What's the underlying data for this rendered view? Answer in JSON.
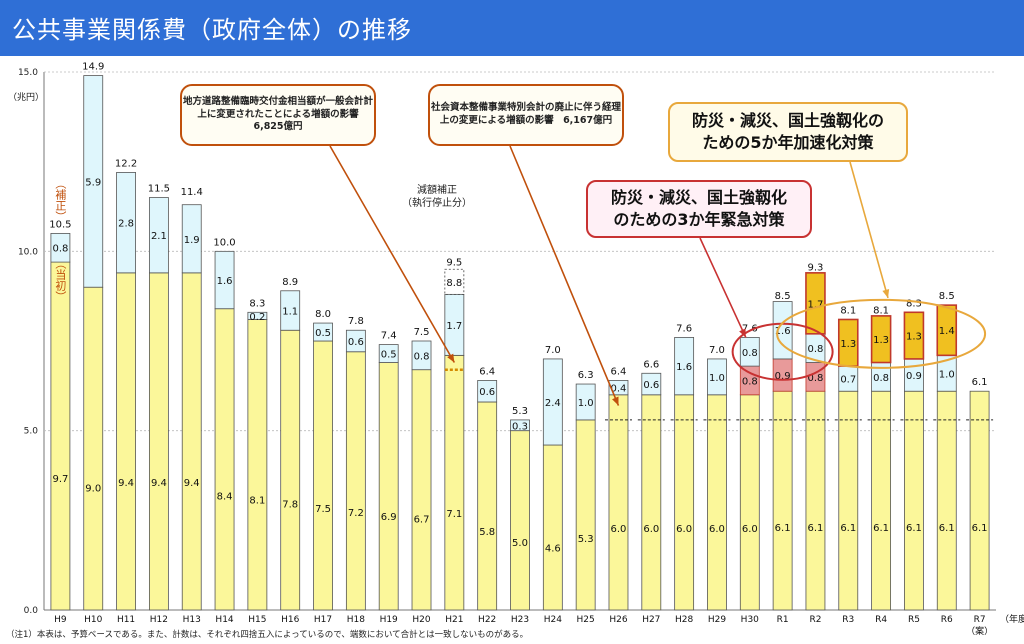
{
  "title": "公共事業関係費（政府全体）の推移",
  "unit": "（兆円）",
  "year_unit": "（年度）",
  "note": "（注1）本表は、予算ベースである。また、計数は、それぞれ四捨五入によっているので、端数において合計とは一致しないものがある。",
  "annotations": {
    "box1": "地方道路整備臨時交付金相当額が一般会計計上に変更されたことによる増額の影響　6,825億円",
    "box2": "社会資本整備事業特別会計の廃止に伴う経理上の変更による増額の影響　6,167億円",
    "box3_line1": "防災・減災、国土強靱化の",
    "box3_line2": "ための5か年加速化対策",
    "box4_line1": "防災・減災、国土強靱化",
    "box4_line2": "のための3か年緊急対策",
    "sanban_line1": "減額補正",
    "sanban_line2": "（執行停止分）",
    "hosei_label": "（補正）",
    "toushoku_label": "（当初）",
    "r7_note": "（案）"
  },
  "colors": {
    "initial": "#fbf79a",
    "supplementary": "#dff6fc",
    "emergency": "#e89a9a",
    "acceleration": "#f0c020",
    "header": "#2f6fd6"
  },
  "chart_data": {
    "type": "bar",
    "stacked": true,
    "ylim": [
      0,
      15
    ],
    "yticks": [
      "0.0",
      "5.0",
      "10.0",
      "15.0"
    ],
    "ytick_values": [
      0,
      5,
      10,
      15
    ],
    "categories": [
      "H9",
      "H10",
      "H11",
      "H12",
      "H13",
      "H14",
      "H15",
      "H16",
      "H17",
      "H18",
      "H19",
      "H20",
      "H21",
      "H22",
      "H23",
      "H24",
      "H25",
      "H26",
      "H27",
      "H28",
      "H29",
      "H30",
      "R1",
      "R2",
      "R3",
      "R4",
      "R5",
      "R6",
      "R7"
    ],
    "totals": [
      "10.5",
      "14.9",
      "12.2",
      "11.5",
      "11.4",
      "10.0",
      "8.3",
      "8.9",
      "8.0",
      "7.8",
      "7.4",
      "7.5",
      "9.5",
      "6.4",
      "5.3",
      "7.0",
      "6.3",
      "6.4",
      "6.6",
      "7.6",
      "7.0",
      "7.6",
      "8.5",
      "9.3",
      "8.1",
      "8.1",
      "8.3",
      "8.5",
      "6.1"
    ],
    "total_values": [
      10.5,
      14.9,
      12.2,
      11.5,
      11.4,
      10.0,
      8.3,
      8.9,
      8.0,
      7.8,
      7.4,
      7.5,
      9.5,
      6.4,
      5.3,
      7.0,
      6.3,
      6.4,
      6.6,
      7.6,
      7.0,
      7.6,
      8.5,
      9.3,
      8.1,
      8.1,
      8.3,
      8.5,
      6.1
    ],
    "initial": [
      "9.7",
      "9.0",
      "9.4",
      "9.4",
      "9.4",
      "8.4",
      "8.1",
      "7.8",
      "7.5",
      "7.2",
      "6.9",
      "6.7",
      "7.1",
      "5.8",
      "5.0",
      "4.6",
      "5.3",
      "6.0",
      "6.0",
      "6.0",
      "6.0",
      "6.0",
      "6.1",
      "6.1",
      "6.1",
      "6.1",
      "6.1",
      "6.1",
      "6.1"
    ],
    "initial_values": [
      9.7,
      9.0,
      9.4,
      9.4,
      9.4,
      8.4,
      8.1,
      7.8,
      7.5,
      7.2,
      6.9,
      6.7,
      7.1,
      5.8,
      5.0,
      4.6,
      5.3,
      6.0,
      6.0,
      6.0,
      6.0,
      6.0,
      6.1,
      6.1,
      6.1,
      6.1,
      6.1,
      6.1,
      6.1
    ],
    "supplementary": [
      "0.8",
      "5.9",
      "2.8",
      "2.1",
      "1.9",
      "1.6",
      "0.2",
      "1.1",
      "0.5",
      "0.6",
      "0.5",
      "0.8",
      "1.7",
      "0.6",
      "0.3",
      "2.4",
      "1.0",
      "0.4",
      "0.6",
      "1.6",
      "1.0",
      "0.8",
      "1.6",
      "0.8",
      "0.7",
      "0.8",
      "0.9",
      "1.0",
      ""
    ],
    "supplementary_values": [
      0.8,
      5.9,
      2.8,
      2.1,
      1.9,
      1.6,
      0.2,
      1.1,
      0.5,
      0.6,
      0.5,
      0.8,
      1.7,
      0.6,
      0.3,
      2.4,
      1.0,
      0.4,
      0.6,
      1.6,
      1.0,
      0.8,
      1.6,
      0.8,
      0.7,
      0.8,
      0.9,
      1.0,
      0
    ],
    "emergency": [
      "",
      "",
      "",
      "",
      "",
      "",
      "",
      "",
      "",
      "",
      "",
      "",
      "",
      "",
      "",
      "",
      "",
      "",
      "",
      "",
      "",
      "0.8",
      "0.9",
      "0.8",
      "",
      "",
      "",
      "",
      ""
    ],
    "emergency_values": [
      0,
      0,
      0,
      0,
      0,
      0,
      0,
      0,
      0,
      0,
      0,
      0,
      0,
      0,
      0,
      0,
      0,
      0,
      0,
      0,
      0,
      0.8,
      0.9,
      0.8,
      0,
      0,
      0,
      0,
      0
    ],
    "acceleration": [
      "",
      "",
      "",
      "",
      "",
      "",
      "",
      "",
      "",
      "",
      "",
      "",
      "",
      "",
      "",
      "",
      "",
      "",
      "",
      "",
      "",
      "",
      "",
      "1.7",
      "1.3",
      "1.3",
      "1.3",
      "1.4",
      ""
    ],
    "acceleration_values": [
      0,
      0,
      0,
      0,
      0,
      0,
      0,
      0,
      0,
      0,
      0,
      0,
      0,
      0,
      0,
      0,
      0,
      0,
      0,
      0,
      0,
      0,
      0,
      1.7,
      1.3,
      1.3,
      1.3,
      1.4,
      0
    ],
    "h21_cut_label": "8.8"
  }
}
